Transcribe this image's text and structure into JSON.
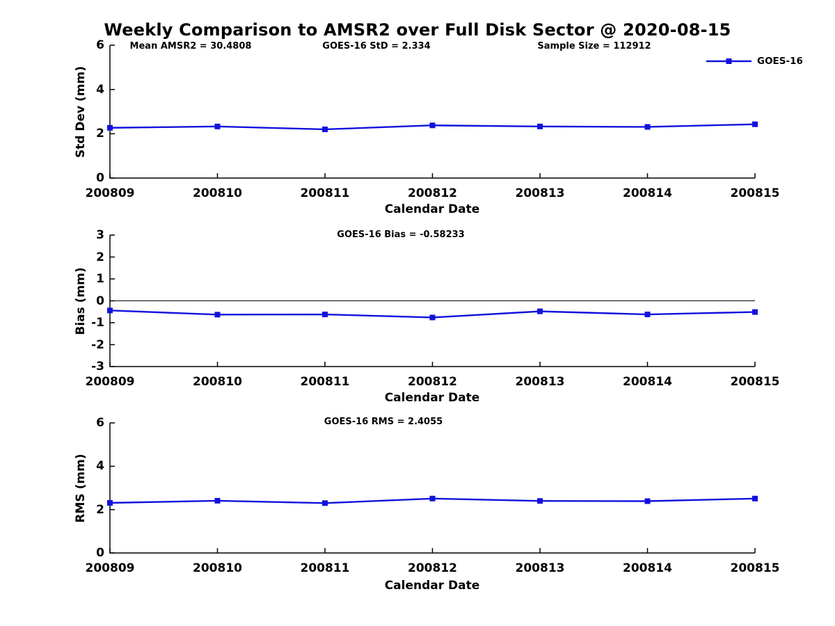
{
  "title": "Weekly Comparison to AMSR2 over Full Disk Sector @ 2020-08-15",
  "legend": {
    "label": "GOES-16"
  },
  "colors": {
    "line": "#1111DD",
    "axis": "#000000",
    "background": "#FFFFFF"
  },
  "chart_data": [
    {
      "name": "std-dev",
      "type": "line",
      "xlabel": "Calendar Date",
      "ylabel": "Std Dev (mm)",
      "categories": [
        "200809",
        "200810",
        "200811",
        "200812",
        "200813",
        "200814",
        "200815"
      ],
      "series": [
        {
          "name": "GOES-16",
          "values": [
            2.27,
            2.33,
            2.2,
            2.38,
            2.33,
            2.31,
            2.43
          ]
        }
      ],
      "ylim": [
        0,
        6
      ],
      "yticks": [
        0,
        2,
        4,
        6
      ],
      "zero_line": false,
      "grid": false,
      "legend_position": "top-right",
      "annotations": [
        "Mean AMSR2 = 30.4808",
        "GOES-16 StD = 2.334",
        "Sample Size = 112912"
      ]
    },
    {
      "name": "bias",
      "type": "line",
      "xlabel": "Calendar Date",
      "ylabel": "Bias (mm)",
      "categories": [
        "200809",
        "200810",
        "200811",
        "200812",
        "200813",
        "200814",
        "200815"
      ],
      "series": [
        {
          "name": "GOES-16",
          "values": [
            -0.44,
            -0.63,
            -0.62,
            -0.76,
            -0.48,
            -0.62,
            -0.51
          ]
        }
      ],
      "ylim": [
        -3,
        3
      ],
      "yticks": [
        3,
        2,
        1,
        0,
        -1,
        -2,
        -3
      ],
      "zero_line": true,
      "grid": false,
      "legend_position": "none",
      "annotations": [
        "GOES-16 Bias  = -0.58233"
      ]
    },
    {
      "name": "rms",
      "type": "line",
      "xlabel": "Calendar Date",
      "ylabel": "RMS (mm)",
      "categories": [
        "200809",
        "200810",
        "200811",
        "200812",
        "200813",
        "200814",
        "200815"
      ],
      "series": [
        {
          "name": "GOES-16",
          "values": [
            2.31,
            2.41,
            2.3,
            2.51,
            2.4,
            2.39,
            2.51
          ]
        }
      ],
      "ylim": [
        0,
        6
      ],
      "yticks": [
        0,
        2,
        4,
        6
      ],
      "zero_line": false,
      "grid": false,
      "legend_position": "none",
      "annotations": [
        "GOES-16 RMS = 2.4055"
      ]
    }
  ]
}
